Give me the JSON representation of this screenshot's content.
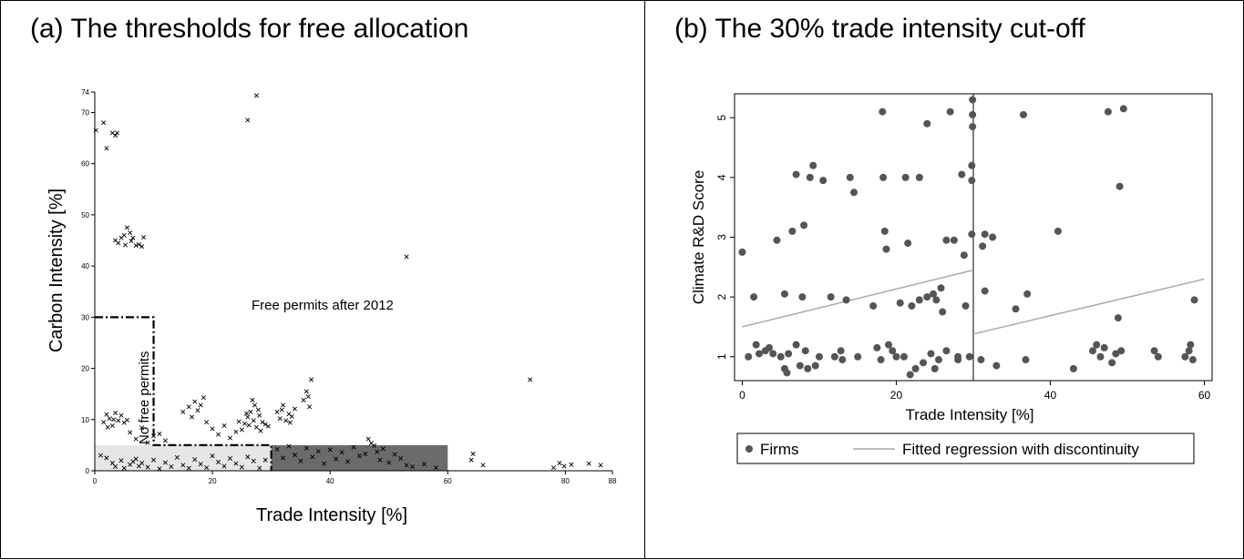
{
  "panel_a": {
    "title": "(a) The thresholds for free allocation"
  },
  "panel_b": {
    "title": "(b) The 30% trade intensity cut-off"
  },
  "chart_data": [
    {
      "type": "scatter",
      "title": "(a) The thresholds for free allocation",
      "xlabel": "Trade Intensity [%]",
      "ylabel": "Carbon Intensity [%]",
      "xlim": [
        0,
        88
      ],
      "ylim": [
        0,
        74
      ],
      "x_ticks": [
        0,
        20,
        40,
        60,
        80,
        88
      ],
      "y_ticks": [
        0,
        10,
        20,
        30,
        40,
        50,
        60,
        70,
        74
      ],
      "marker": "x",
      "grid": false,
      "annotations": [
        "Free permits after 2012",
        "No free permits"
      ],
      "regions": [
        {
          "name": "no-free-permits-boundary",
          "style": "dash-dot",
          "vertices": [
            [
              0,
              30
            ],
            [
              10,
              30
            ],
            [
              10,
              5
            ],
            [
              30,
              5
            ],
            [
              30,
              0
            ]
          ]
        },
        {
          "name": "light-region",
          "color": "#e6e6e6",
          "x": [
            0,
            30
          ],
          "y": [
            0,
            5
          ]
        },
        {
          "name": "dark-region",
          "color": "#6b6b6b",
          "x": [
            30,
            60
          ],
          "y": [
            0,
            5
          ]
        }
      ],
      "points": [
        [
          0.2,
          66.5
        ],
        [
          1.5,
          68
        ],
        [
          2,
          63
        ],
        [
          3,
          66
        ],
        [
          3.5,
          65.5
        ],
        [
          3.8,
          66
        ],
        [
          26,
          68.5
        ],
        [
          27.5,
          73.3
        ],
        [
          53,
          41.8
        ],
        [
          1,
          3
        ],
        [
          2,
          2.5
        ],
        [
          3,
          1.5
        ],
        [
          3.5,
          0.8
        ],
        [
          4.5,
          2
        ],
        [
          5,
          0.5
        ],
        [
          6,
          1.2
        ],
        [
          6.5,
          1.8
        ],
        [
          7,
          2.3
        ],
        [
          7.5,
          0.9
        ],
        [
          8,
          1.5
        ],
        [
          9,
          0.7
        ],
        [
          10,
          2.1
        ],
        [
          11,
          0.4
        ],
        [
          12,
          1.6
        ],
        [
          13,
          0.8
        ],
        [
          14,
          2.6
        ],
        [
          15,
          1.1
        ],
        [
          16,
          0.5
        ],
        [
          17,
          2.2
        ],
        [
          18,
          1.3
        ],
        [
          19,
          0.6
        ],
        [
          20,
          2.9
        ],
        [
          21,
          1.7
        ],
        [
          22,
          0.9
        ],
        [
          23,
          2.4
        ],
        [
          24,
          1.4
        ],
        [
          25,
          0.7
        ],
        [
          26,
          2.7
        ],
        [
          27,
          1.9
        ],
        [
          28,
          0.5
        ],
        [
          29,
          2.1
        ],
        [
          1.5,
          9.5
        ],
        [
          2,
          11
        ],
        [
          2.5,
          10.2
        ],
        [
          3,
          8.8
        ],
        [
          3.5,
          11.3
        ],
        [
          4,
          9.8
        ],
        [
          4.5,
          10.8
        ],
        [
          5,
          9.4
        ],
        [
          5.5,
          9.9
        ],
        [
          2.2,
          8.5
        ],
        [
          3.2,
          10
        ],
        [
          6,
          7.5
        ],
        [
          7,
          6.2
        ],
        [
          8,
          8.4
        ],
        [
          9,
          5.5
        ],
        [
          10,
          6.8
        ],
        [
          11,
          7.2
        ],
        [
          12,
          5.9
        ],
        [
          15,
          11.5
        ],
        [
          16,
          12.5
        ],
        [
          16.5,
          10.5
        ],
        [
          17,
          13.5
        ],
        [
          17.5,
          11.8
        ],
        [
          18,
          12.8
        ],
        [
          18.5,
          14.3
        ],
        [
          19,
          9.5
        ],
        [
          20,
          8.2
        ],
        [
          21,
          7.1
        ],
        [
          22,
          8.8
        ],
        [
          23,
          6.4
        ],
        [
          24,
          7.6
        ],
        [
          25,
          8
        ],
        [
          25.5,
          9.2
        ],
        [
          26,
          10.5
        ],
        [
          26.5,
          11.5
        ],
        [
          27,
          9.8
        ],
        [
          27.2,
          12.8
        ],
        [
          27.5,
          8.5
        ],
        [
          28,
          10.8
        ],
        [
          28.2,
          7.8
        ],
        [
          28.5,
          9.5
        ],
        [
          26.8,
          13.8
        ],
        [
          25.8,
          11.2
        ],
        [
          27.8,
          11.9
        ],
        [
          29,
          9.1
        ],
        [
          24.5,
          9.6
        ],
        [
          29.5,
          8.7
        ],
        [
          26.2,
          8.9
        ],
        [
          31,
          11.5
        ],
        [
          31.5,
          10.2
        ],
        [
          32,
          12.8
        ],
        [
          32.5,
          9.8
        ],
        [
          33,
          11.1
        ],
        [
          33.5,
          10.6
        ],
        [
          34,
          12.1
        ],
        [
          31.8,
          11.9
        ],
        [
          33.2,
          9.4
        ],
        [
          36,
          15.5
        ],
        [
          36.3,
          14.5
        ],
        [
          36.8,
          17.8
        ],
        [
          36.5,
          12.5
        ],
        [
          35.5,
          13.8
        ],
        [
          3.5,
          45
        ],
        [
          4,
          44.5
        ],
        [
          4.5,
          45.5
        ],
        [
          5,
          46
        ],
        [
          5.5,
          47.5
        ],
        [
          6,
          46.5
        ],
        [
          6.5,
          45.5
        ],
        [
          7,
          44
        ],
        [
          7.5,
          44.2
        ],
        [
          8,
          43.8
        ],
        [
          8.3,
          45.6
        ],
        [
          6.2,
          44.9
        ],
        [
          5.2,
          44.1
        ],
        [
          31,
          4.2
        ],
        [
          32,
          2.5
        ],
        [
          33,
          4.8
        ],
        [
          34,
          3.1
        ],
        [
          35,
          1.9
        ],
        [
          36,
          4.4
        ],
        [
          37,
          2.7
        ],
        [
          38,
          3.8
        ],
        [
          39,
          1.4
        ],
        [
          40,
          4.1
        ],
        [
          41,
          2.3
        ],
        [
          42,
          3.6
        ],
        [
          43,
          1.8
        ],
        [
          44,
          4.6
        ],
        [
          45,
          2.9
        ],
        [
          46,
          3.3
        ],
        [
          46.5,
          6.2
        ],
        [
          47,
          5.4
        ],
        [
          47.5,
          4.9
        ],
        [
          48,
          3.7
        ],
        [
          48.5,
          2.1
        ],
        [
          49,
          4.3
        ],
        [
          50,
          1.6
        ],
        [
          51,
          3.2
        ],
        [
          52,
          2.4
        ],
        [
          53,
          1.1
        ],
        [
          54,
          0.8
        ],
        [
          56,
          1.3
        ],
        [
          58,
          0.6
        ],
        [
          64,
          2.1
        ],
        [
          64.3,
          3.3
        ],
        [
          66,
          1.1
        ],
        [
          74,
          17.8
        ],
        [
          78,
          0.6
        ],
        [
          79,
          1.5
        ],
        [
          79.8,
          0.9
        ],
        [
          81,
          1.2
        ],
        [
          84,
          1.4
        ],
        [
          86,
          1.1
        ]
      ]
    },
    {
      "type": "scatter",
      "title": "(b) The 30% trade intensity cut-off",
      "xlabel": "Trade Intensity [%]",
      "ylabel": "Climate R&D Score",
      "xlim": [
        -1,
        61
      ],
      "ylim": [
        0.6,
        5.4
      ],
      "x_ticks": [
        0,
        20,
        40,
        60
      ],
      "y_ticks": [
        1,
        2,
        3,
        4,
        5
      ],
      "cutoff_x": 30,
      "grid": false,
      "legend_position": "bottom",
      "series": [
        {
          "name": "Firms",
          "marker": "circle",
          "color": "#555555",
          "points": [
            [
              0,
              2.75
            ],
            [
              0.8,
              1
            ],
            [
              1.5,
              2
            ],
            [
              1.8,
              1.2
            ],
            [
              2.2,
              1.05
            ],
            [
              3,
              1.1
            ],
            [
              3.5,
              1.15
            ],
            [
              4,
              1.05
            ],
            [
              4.5,
              2.95
            ],
            [
              5,
              1
            ],
            [
              5.5,
              0.8
            ],
            [
              5.8,
              0.73
            ],
            [
              5.5,
              2.05
            ],
            [
              6,
              1.05
            ],
            [
              6.5,
              3.1
            ],
            [
              7,
              4.05
            ],
            [
              7,
              1.2
            ],
            [
              7.5,
              0.85
            ],
            [
              7.8,
              2
            ],
            [
              8,
              3.2
            ],
            [
              8.2,
              1.1
            ],
            [
              8.5,
              0.8
            ],
            [
              8.8,
              4
            ],
            [
              9.2,
              4.2
            ],
            [
              9.5,
              0.85
            ],
            [
              10,
              1
            ],
            [
              10.5,
              3.95
            ],
            [
              11.5,
              2
            ],
            [
              12,
              1
            ],
            [
              12.8,
              1.1
            ],
            [
              13,
              0.95
            ],
            [
              13.5,
              1.95
            ],
            [
              14,
              4
            ],
            [
              14.5,
              3.75
            ],
            [
              15,
              1
            ],
            [
              17,
              1.85
            ],
            [
              17.5,
              1.15
            ],
            [
              18,
              0.95
            ],
            [
              18.5,
              3.1
            ],
            [
              18.7,
              2.8
            ],
            [
              18.3,
              4
            ],
            [
              18.2,
              5.1
            ],
            [
              19,
              1.2
            ],
            [
              19.5,
              1.1
            ],
            [
              20,
              1
            ],
            [
              20.5,
              1.9
            ],
            [
              21,
              1
            ],
            [
              21.2,
              4
            ],
            [
              21.5,
              2.9
            ],
            [
              21.8,
              0.7
            ],
            [
              22,
              1.85
            ],
            [
              22.5,
              0.8
            ],
            [
              23,
              1.95
            ],
            [
              23,
              4
            ],
            [
              23.5,
              0.9
            ],
            [
              24,
              2
            ],
            [
              24,
              4.9
            ],
            [
              24.5,
              1.05
            ],
            [
              24.8,
              2.05
            ],
            [
              25,
              0.8
            ],
            [
              25.2,
              1.95
            ],
            [
              25.5,
              0.95
            ],
            [
              25.8,
              2.15
            ],
            [
              26,
              1.75
            ],
            [
              26.5,
              1.1
            ],
            [
              26.5,
              2.95
            ],
            [
              27,
              5.1
            ],
            [
              27.5,
              2.95
            ],
            [
              28,
              1
            ],
            [
              28,
              0.95
            ],
            [
              28.5,
              4.05
            ],
            [
              28.8,
              2.7
            ],
            [
              29,
              1.85
            ],
            [
              29.5,
              1
            ],
            [
              29.8,
              4.2
            ],
            [
              29.8,
              3.95
            ],
            [
              29.8,
              3.05
            ],
            [
              29.9,
              4.85
            ],
            [
              29.9,
              5.05
            ],
            [
              29.9,
              5.3
            ],
            [
              31,
              0.95
            ],
            [
              31.2,
              2.85
            ],
            [
              31.5,
              3.05
            ],
            [
              31.5,
              2.1
            ],
            [
              32.5,
              3
            ],
            [
              33,
              0.85
            ],
            [
              35.5,
              1.8
            ],
            [
              36.5,
              5.05
            ],
            [
              36.8,
              0.95
            ],
            [
              37,
              2.05
            ],
            [
              41,
              3.1
            ],
            [
              43,
              0.8
            ],
            [
              45.5,
              1.1
            ],
            [
              46,
              1.2
            ],
            [
              46.5,
              1
            ],
            [
              47,
              1.15
            ],
            [
              47.5,
              5.1
            ],
            [
              48,
              0.9
            ],
            [
              48.5,
              1.05
            ],
            [
              48.8,
              1.65
            ],
            [
              49,
              3.85
            ],
            [
              49.2,
              1.1
            ],
            [
              49.5,
              5.15
            ],
            [
              53.5,
              1.1
            ],
            [
              54,
              1
            ],
            [
              57.5,
              1
            ],
            [
              58,
              1.1
            ],
            [
              58.2,
              1.2
            ],
            [
              58.5,
              0.95
            ],
            [
              58.7,
              1.95
            ]
          ]
        },
        {
          "name": "Fitted regression with discontinuity",
          "type": "line",
          "color": "#aaaaaa",
          "segments": [
            [
              [
                0,
                1.5
              ],
              [
                30,
                2.45
              ]
            ],
            [
              [
                30,
                1.38
              ],
              [
                60,
                2.3
              ]
            ]
          ]
        }
      ]
    }
  ]
}
